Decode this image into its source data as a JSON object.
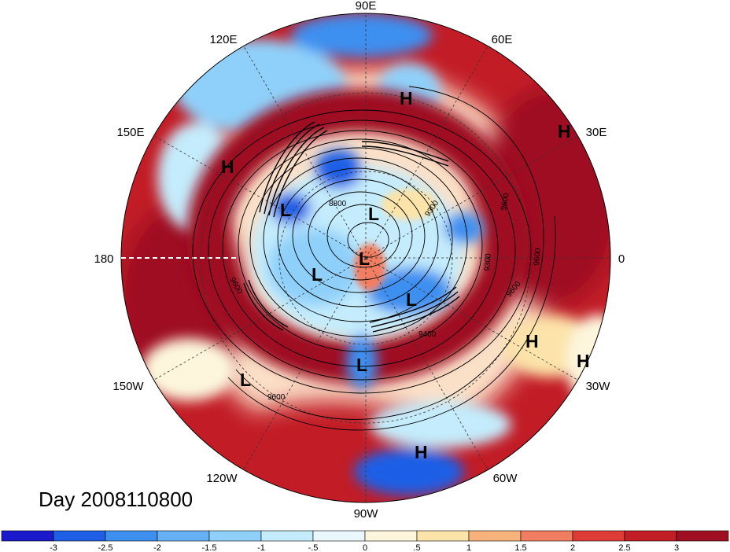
{
  "title": "Day 2008110800",
  "projection": "north-polar-stereographic",
  "longitude_labels": [
    {
      "id": "90E",
      "text": "90E"
    },
    {
      "id": "60E",
      "text": "60E"
    },
    {
      "id": "30E",
      "text": "30E"
    },
    {
      "id": "0",
      "text": "0"
    },
    {
      "id": "30W",
      "text": "30W"
    },
    {
      "id": "60W",
      "text": "60W"
    },
    {
      "id": "90W",
      "text": "90W"
    },
    {
      "id": "120W",
      "text": "120W"
    },
    {
      "id": "150W",
      "text": "150W"
    },
    {
      "id": "180",
      "text": "180"
    },
    {
      "id": "150E",
      "text": "150E"
    },
    {
      "id": "120E",
      "text": "120E"
    }
  ],
  "pressure_centers": [
    {
      "type": "H",
      "text": "H"
    },
    {
      "type": "H",
      "text": "H"
    },
    {
      "type": "H",
      "text": "H"
    },
    {
      "type": "H",
      "text": "H"
    },
    {
      "type": "H",
      "text": "H"
    },
    {
      "type": "H",
      "text": "H"
    },
    {
      "type": "L",
      "text": "L"
    },
    {
      "type": "L",
      "text": "L"
    },
    {
      "type": "L",
      "text": "L"
    },
    {
      "type": "L",
      "text": "L"
    },
    {
      "type": "L",
      "text": "L"
    },
    {
      "type": "L",
      "text": "L"
    },
    {
      "type": "L",
      "text": "L"
    }
  ],
  "contour_labels": [
    "8800",
    "9300",
    "9600",
    "9300",
    "9600",
    "9600",
    "9400",
    "9600",
    "9600"
  ],
  "colorbar": {
    "ticks": [
      "-3",
      "-2.5",
      "-2",
      "-1.5",
      "-1",
      "-.5",
      "0",
      ".5",
      "1",
      "1.5",
      "2",
      "2.5",
      "3"
    ],
    "colors": [
      "#1a1acc",
      "#1f5fe6",
      "#3d8ff0",
      "#66b0f5",
      "#8fd0fa",
      "#c4ecfc",
      "#eaf8fd",
      "#fdf6dd",
      "#fce3a9",
      "#f8b27c",
      "#f27e62",
      "#e03c37",
      "#c21e25",
      "#9e1021"
    ]
  },
  "colors": {
    "deep_red": "#9e1021",
    "red": "#c21e25",
    "deep_blue": "#1a1acc",
    "light_blue": "#8fd0fa"
  }
}
